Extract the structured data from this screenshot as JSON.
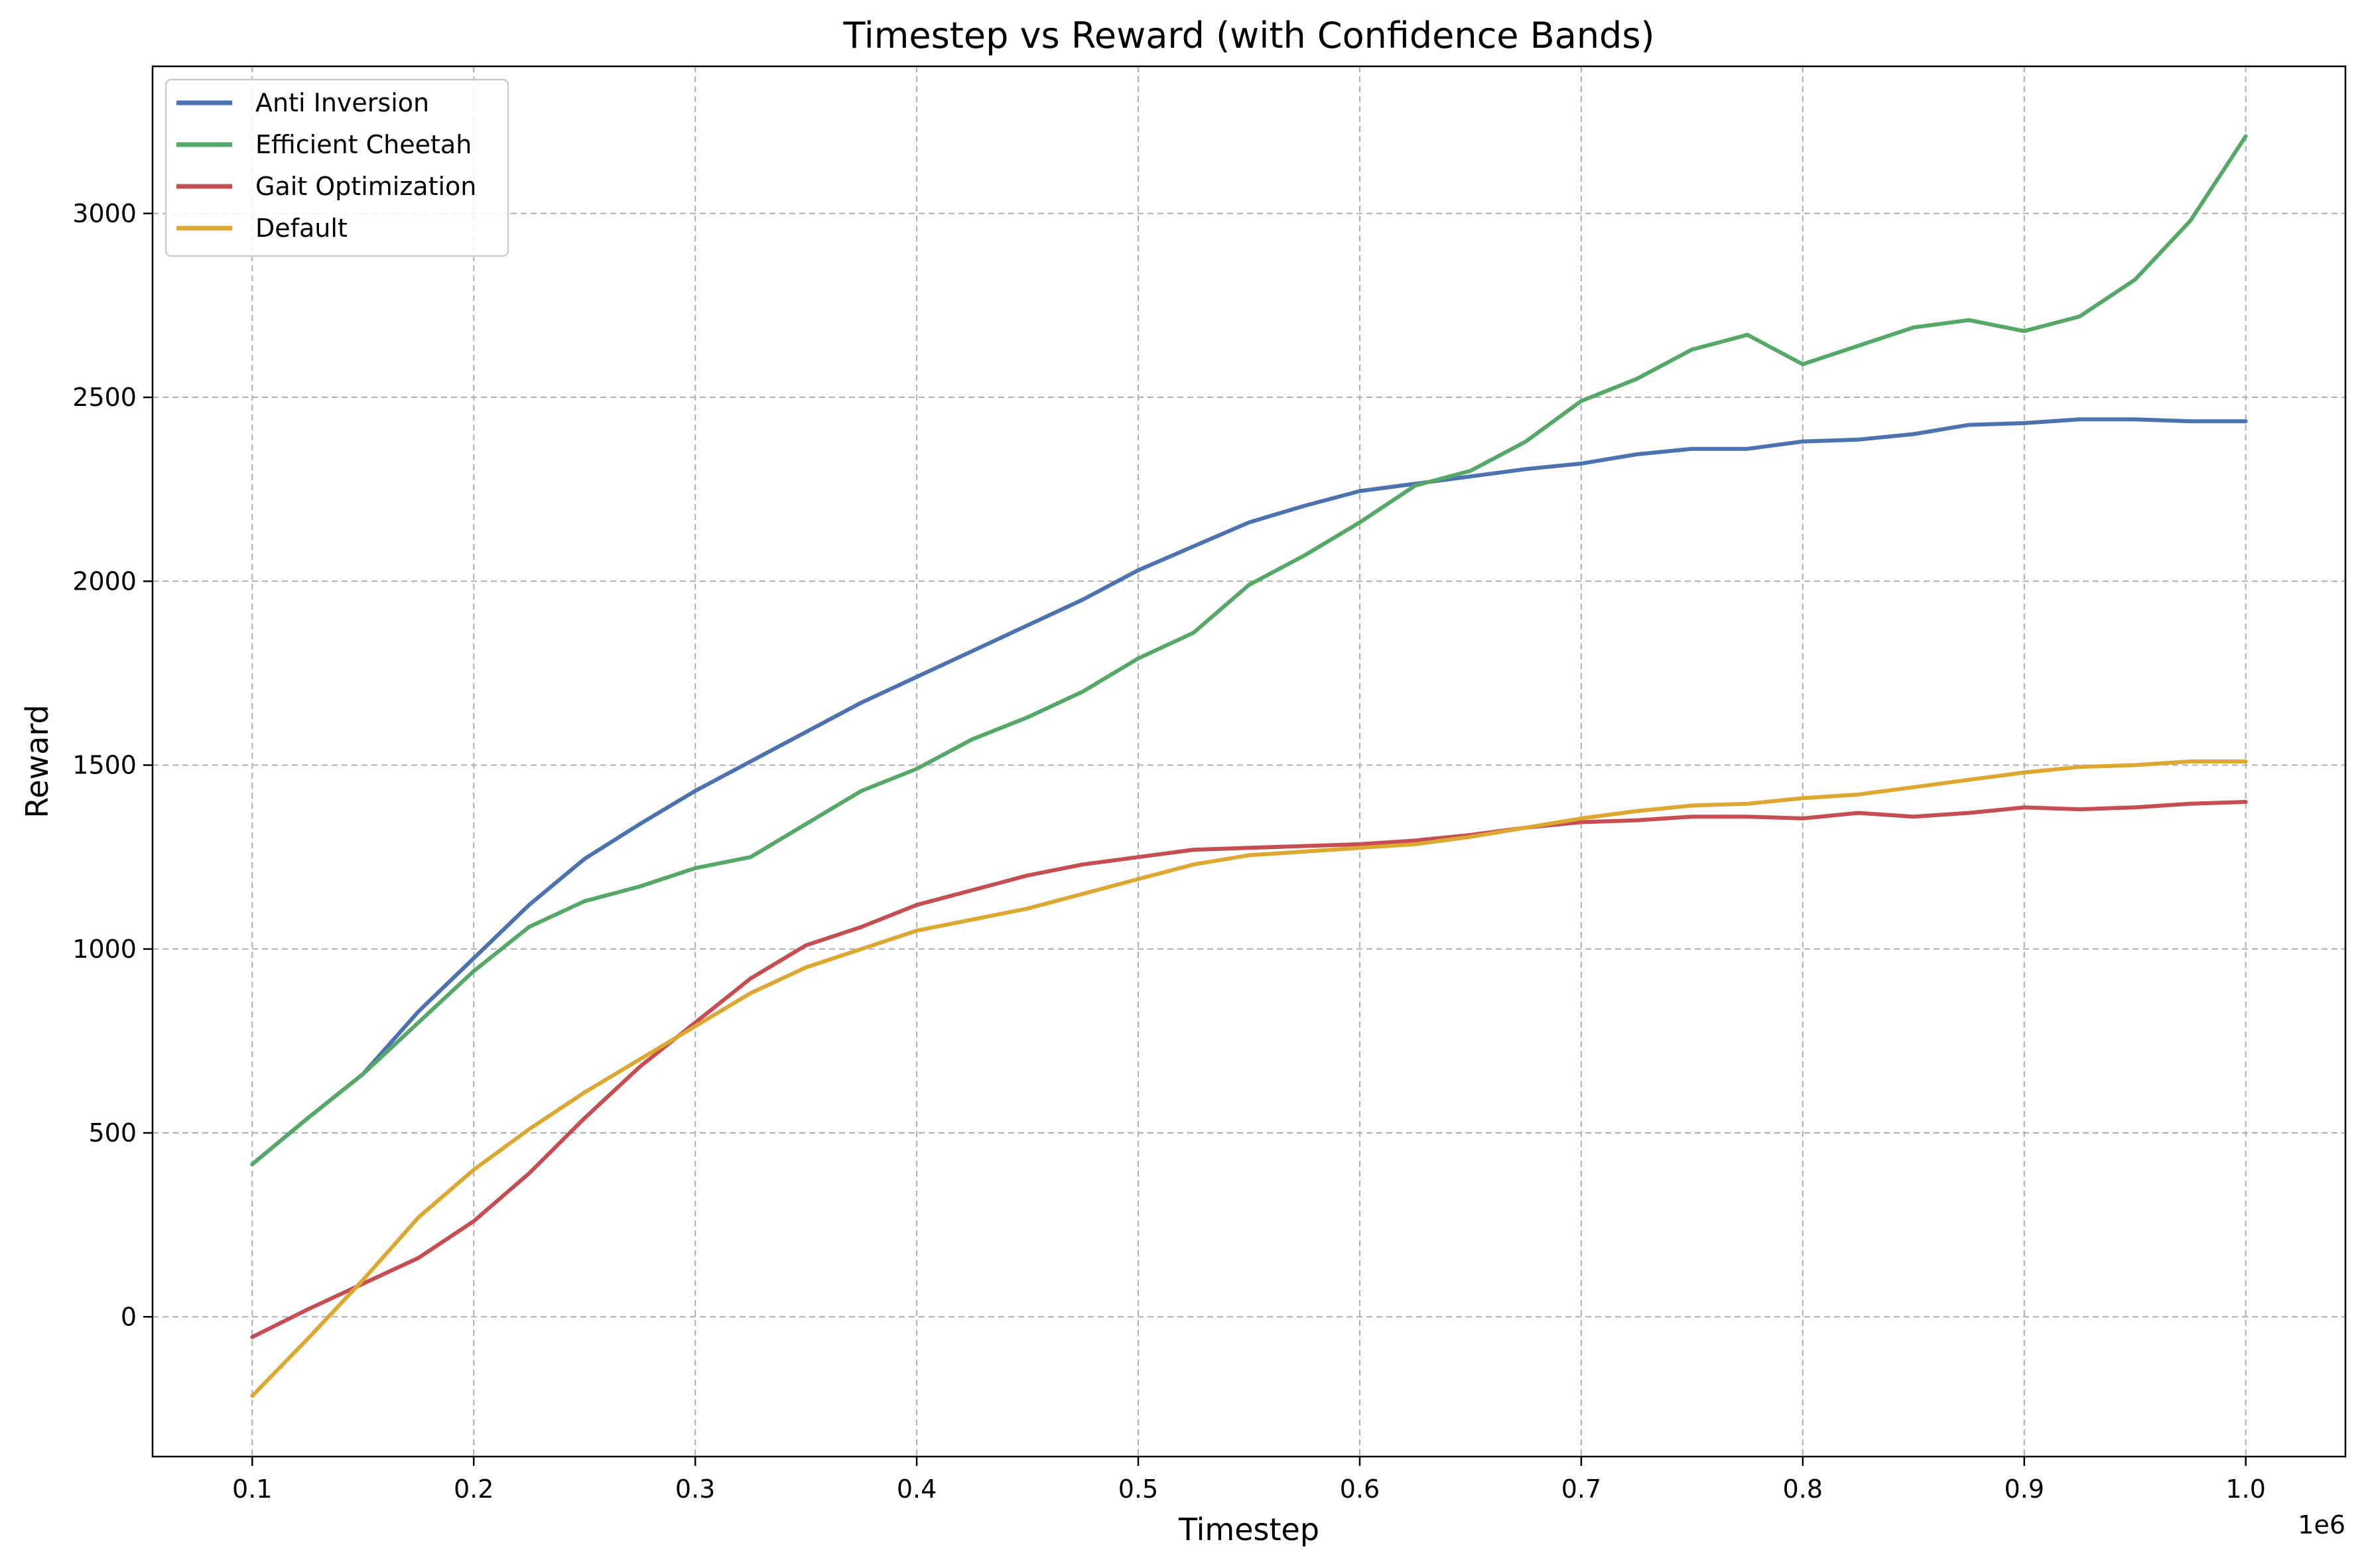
{
  "chart_data": {
    "type": "line",
    "title": "Timestep vs Reward (with Confidence Bands)",
    "xlabel": "Timestep",
    "ylabel": "Reward",
    "x_offset_label": "1e6",
    "xlim": [
      0.055,
      1.045
    ],
    "ylim": [
      -380,
      3400
    ],
    "xticks": [
      0.1,
      0.2,
      0.3,
      0.4,
      0.5,
      0.6,
      0.7,
      0.8,
      0.9,
      1.0
    ],
    "xtick_labels": [
      "0.1",
      "0.2",
      "0.3",
      "0.4",
      "0.5",
      "0.6",
      "0.7",
      "0.8",
      "0.9",
      "1.0"
    ],
    "yticks": [
      0,
      500,
      1000,
      1500,
      2000,
      2500,
      3000
    ],
    "ytick_labels": [
      "0",
      "500",
      "1000",
      "1500",
      "2000",
      "2500",
      "3000"
    ],
    "grid": true,
    "legend_position": "top-left",
    "x": [
      0.1,
      0.125,
      0.15,
      0.175,
      0.2,
      0.225,
      0.25,
      0.275,
      0.3,
      0.325,
      0.35,
      0.375,
      0.4,
      0.425,
      0.45,
      0.475,
      0.5,
      0.525,
      0.55,
      0.575,
      0.6,
      0.625,
      0.65,
      0.675,
      0.7,
      0.725,
      0.75,
      0.775,
      0.8,
      0.825,
      0.85,
      0.875,
      0.9,
      0.925,
      0.95,
      0.975,
      1.0
    ],
    "series": [
      {
        "name": "Anti Inversion",
        "color": "#4c72b0",
        "values": [
          415,
          540,
          660,
          830,
          975,
          1120,
          1245,
          1340,
          1430,
          1510,
          1590,
          1670,
          1740,
          1810,
          1880,
          1950,
          2030,
          2095,
          2160,
          2205,
          2245,
          2265,
          2285,
          2305,
          2320,
          2345,
          2360,
          2360,
          2380,
          2385,
          2400,
          2425,
          2430,
          2440,
          2440,
          2435,
          2435
        ]
      },
      {
        "name": "Efficient Cheetah",
        "color": "#55a868",
        "values": [
          415,
          540,
          660,
          800,
          940,
          1060,
          1130,
          1170,
          1220,
          1250,
          1340,
          1430,
          1490,
          1570,
          1630,
          1700,
          1790,
          1860,
          1990,
          2070,
          2160,
          2260,
          2300,
          2380,
          2490,
          2550,
          2630,
          2670,
          2590,
          2640,
          2690,
          2710,
          2680,
          2720,
          2820,
          2980,
          3210
        ]
      },
      {
        "name": "Gait Optimization",
        "color": "#c44e52",
        "values": [
          -55,
          20,
          90,
          160,
          260,
          390,
          540,
          680,
          800,
          920,
          1010,
          1060,
          1120,
          1160,
          1200,
          1230,
          1250,
          1270,
          1275,
          1280,
          1285,
          1295,
          1310,
          1330,
          1345,
          1350,
          1360,
          1360,
          1355,
          1370,
          1360,
          1370,
          1385,
          1380,
          1385,
          1395,
          1400
        ]
      },
      {
        "name": "Default",
        "color": "#dda832",
        "values": [
          -215,
          -60,
          100,
          270,
          400,
          510,
          610,
          700,
          790,
          880,
          950,
          1000,
          1050,
          1080,
          1110,
          1150,
          1190,
          1230,
          1255,
          1265,
          1275,
          1285,
          1305,
          1330,
          1355,
          1375,
          1390,
          1395,
          1410,
          1420,
          1440,
          1460,
          1480,
          1495,
          1500,
          1510,
          1510
        ]
      }
    ]
  }
}
